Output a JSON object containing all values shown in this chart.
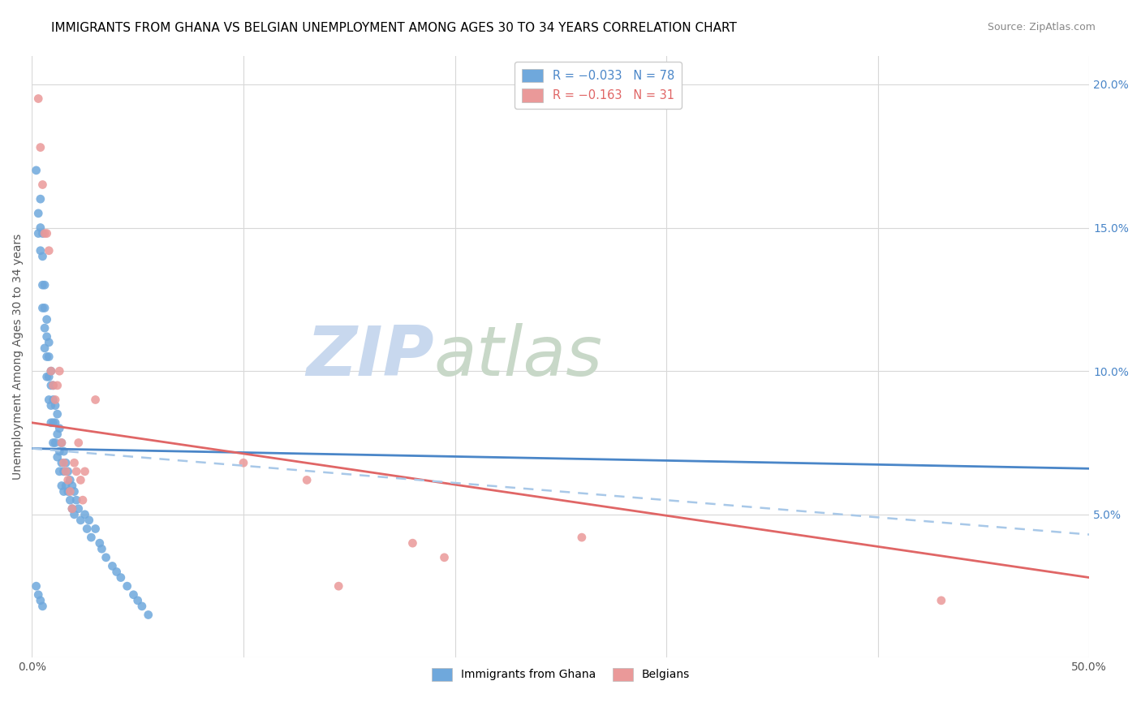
{
  "title": "IMMIGRANTS FROM GHANA VS BELGIAN UNEMPLOYMENT AMONG AGES 30 TO 34 YEARS CORRELATION CHART",
  "source": "Source: ZipAtlas.com",
  "ylabel": "Unemployment Among Ages 30 to 34 years",
  "xlim": [
    0.0,
    0.5
  ],
  "ylim": [
    0.0,
    0.21
  ],
  "xticks": [
    0.0,
    0.1,
    0.2,
    0.3,
    0.4,
    0.5
  ],
  "xtick_labels": [
    "0.0%",
    "",
    "",
    "",
    "",
    "50.0%"
  ],
  "yticks": [
    0.0,
    0.05,
    0.1,
    0.15,
    0.2
  ],
  "ytick_labels_right": [
    "",
    "5.0%",
    "10.0%",
    "15.0%",
    "20.0%"
  ],
  "legend_r1": "R = −0.033",
  "legend_n1": "N = 78",
  "legend_r2": "R = −0.163",
  "legend_n2": "N = 31",
  "color_blue": "#6fa8dc",
  "color_pink": "#ea9999",
  "color_line_blue": "#4a86c8",
  "color_line_pink": "#e06666",
  "color_dashed": "#a8c8e8",
  "watermark_zip_color": "#c8d8ee",
  "watermark_atlas_color": "#c8d8c8",
  "title_fontsize": 11,
  "axis_label_fontsize": 10,
  "tick_fontsize": 10,
  "right_tick_color": "#4a86c8",
  "blue_line_start_y": 0.073,
  "blue_line_end_y": 0.066,
  "pink_line_start_y": 0.082,
  "pink_line_end_y": 0.028,
  "dashed_line_start_y": 0.073,
  "dashed_line_end_y": 0.043,
  "blue_scatter_x": [
    0.002,
    0.003,
    0.003,
    0.004,
    0.004,
    0.004,
    0.005,
    0.005,
    0.005,
    0.005,
    0.006,
    0.006,
    0.006,
    0.006,
    0.007,
    0.007,
    0.007,
    0.007,
    0.008,
    0.008,
    0.008,
    0.008,
    0.009,
    0.009,
    0.009,
    0.009,
    0.01,
    0.01,
    0.01,
    0.01,
    0.011,
    0.011,
    0.011,
    0.012,
    0.012,
    0.012,
    0.013,
    0.013,
    0.013,
    0.014,
    0.014,
    0.014,
    0.015,
    0.015,
    0.015,
    0.016,
    0.016,
    0.017,
    0.017,
    0.018,
    0.018,
    0.019,
    0.019,
    0.02,
    0.02,
    0.021,
    0.022,
    0.023,
    0.025,
    0.026,
    0.027,
    0.028,
    0.03,
    0.032,
    0.033,
    0.035,
    0.038,
    0.04,
    0.042,
    0.045,
    0.048,
    0.05,
    0.052,
    0.055,
    0.002,
    0.003,
    0.004,
    0.005
  ],
  "blue_scatter_y": [
    0.17,
    0.155,
    0.148,
    0.16,
    0.15,
    0.142,
    0.148,
    0.14,
    0.13,
    0.122,
    0.13,
    0.122,
    0.115,
    0.108,
    0.118,
    0.112,
    0.105,
    0.098,
    0.11,
    0.105,
    0.098,
    0.09,
    0.1,
    0.095,
    0.088,
    0.082,
    0.095,
    0.09,
    0.082,
    0.075,
    0.088,
    0.082,
    0.075,
    0.085,
    0.078,
    0.07,
    0.08,
    0.072,
    0.065,
    0.075,
    0.068,
    0.06,
    0.072,
    0.065,
    0.058,
    0.068,
    0.06,
    0.065,
    0.058,
    0.062,
    0.055,
    0.06,
    0.052,
    0.058,
    0.05,
    0.055,
    0.052,
    0.048,
    0.05,
    0.045,
    0.048,
    0.042,
    0.045,
    0.04,
    0.038,
    0.035,
    0.032,
    0.03,
    0.028,
    0.025,
    0.022,
    0.02,
    0.018,
    0.015,
    0.025,
    0.022,
    0.02,
    0.018
  ],
  "pink_scatter_x": [
    0.003,
    0.004,
    0.005,
    0.006,
    0.007,
    0.008,
    0.009,
    0.01,
    0.011,
    0.012,
    0.013,
    0.014,
    0.015,
    0.016,
    0.017,
    0.018,
    0.019,
    0.02,
    0.021,
    0.022,
    0.023,
    0.024,
    0.025,
    0.03,
    0.1,
    0.13,
    0.145,
    0.18,
    0.195,
    0.26,
    0.43
  ],
  "pink_scatter_y": [
    0.195,
    0.178,
    0.165,
    0.148,
    0.148,
    0.142,
    0.1,
    0.095,
    0.09,
    0.095,
    0.1,
    0.075,
    0.068,
    0.065,
    0.062,
    0.058,
    0.052,
    0.068,
    0.065,
    0.075,
    0.062,
    0.055,
    0.065,
    0.09,
    0.068,
    0.062,
    0.025,
    0.04,
    0.035,
    0.042,
    0.02
  ]
}
